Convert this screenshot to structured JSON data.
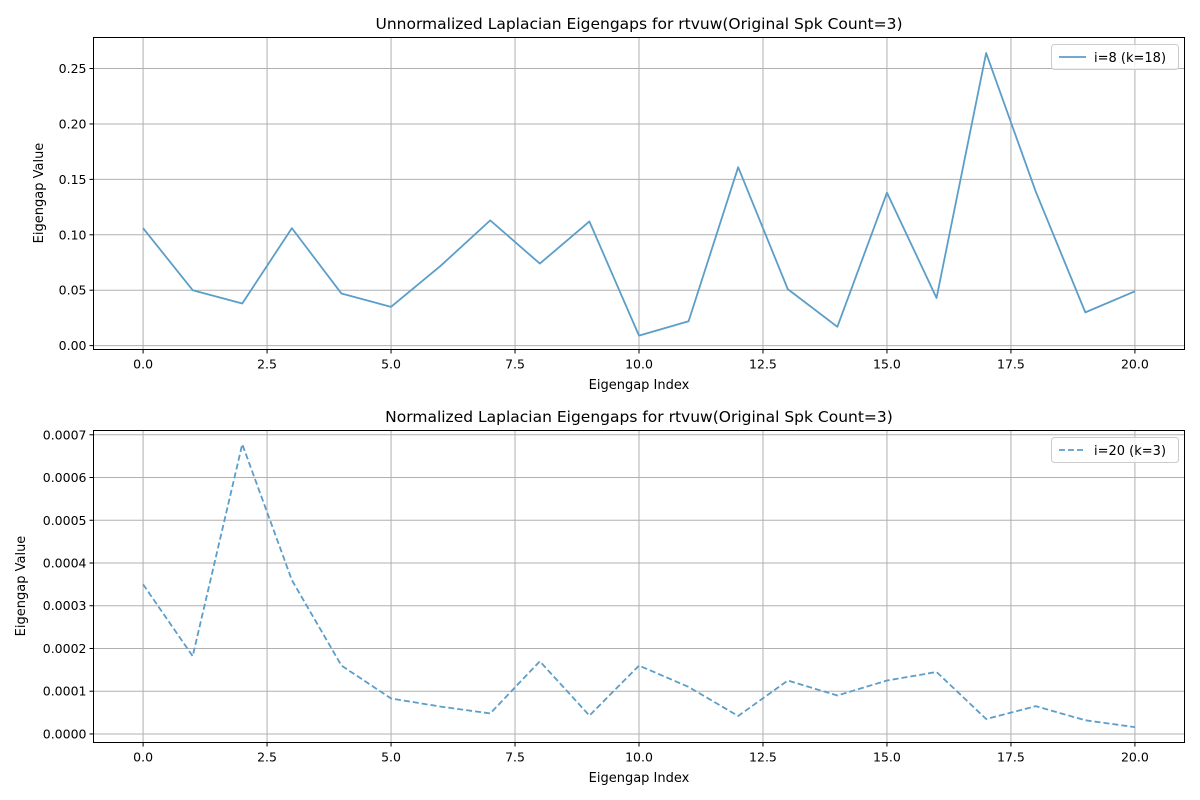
{
  "chart_data": [
    {
      "type": "line",
      "title": "Unnormalized Laplacian Eigengaps for rtvuw(Original Spk Count=3)",
      "xlabel": "Eigengap Index",
      "ylabel": "Eigengap Value",
      "xlim": [
        -1,
        21
      ],
      "ylim": [
        -0.0035,
        0.278
      ],
      "xticks": [
        0.0,
        2.5,
        5.0,
        7.5,
        10.0,
        12.5,
        15.0,
        17.5,
        20.0
      ],
      "xtick_labels": [
        "0.0",
        "2.5",
        "5.0",
        "7.5",
        "10.0",
        "12.5",
        "15.0",
        "17.5",
        "20.0"
      ],
      "yticks": [
        0.0,
        0.05,
        0.1,
        0.15,
        0.2,
        0.25
      ],
      "ytick_labels": [
        "0.00",
        "0.05",
        "0.10",
        "0.15",
        "0.20",
        "0.25"
      ],
      "grid": true,
      "legend_position": "top-right",
      "series": [
        {
          "name": "i=8 (k=18)",
          "style": "solid",
          "color": "#5b9ec9",
          "x": [
            0,
            1,
            2,
            3,
            4,
            5,
            6,
            7,
            8,
            9,
            10,
            11,
            12,
            13,
            14,
            15,
            16,
            17,
            18,
            19,
            20
          ],
          "values": [
            0.106,
            0.05,
            0.038,
            0.106,
            0.047,
            0.035,
            0.072,
            0.113,
            0.074,
            0.112,
            0.009,
            0.022,
            0.161,
            0.051,
            0.017,
            0.138,
            0.043,
            0.264,
            0.139,
            0.03,
            0.049
          ]
        }
      ]
    },
    {
      "type": "line",
      "title": "Normalized Laplacian Eigengaps for rtvuw(Original Spk Count=3)",
      "xlabel": "Eigengap Index",
      "ylabel": "Eigengap Value",
      "xlim": [
        -1,
        21
      ],
      "ylim": [
        -2e-05,
        0.00071
      ],
      "xticks": [
        0.0,
        2.5,
        5.0,
        7.5,
        10.0,
        12.5,
        15.0,
        17.5,
        20.0
      ],
      "xtick_labels": [
        "0.0",
        "2.5",
        "5.0",
        "7.5",
        "10.0",
        "12.5",
        "15.0",
        "17.5",
        "20.0"
      ],
      "yticks": [
        0.0,
        0.0001,
        0.0002,
        0.0003,
        0.0004,
        0.0005,
        0.0006,
        0.0007
      ],
      "ytick_labels": [
        "0.0000",
        "0.0001",
        "0.0002",
        "0.0003",
        "0.0004",
        "0.0005",
        "0.0006",
        "0.0007"
      ],
      "grid": true,
      "legend_position": "top-right",
      "series": [
        {
          "name": "i=20 (k=3)",
          "style": "dashed",
          "color": "#5b9ec9",
          "x": [
            0,
            1,
            2,
            3,
            4,
            5,
            6,
            7,
            8,
            9,
            10,
            11,
            12,
            13,
            14,
            15,
            16,
            17,
            18,
            19,
            20
          ],
          "values": [
            0.00035,
            0.000182,
            0.000678,
            0.00036,
            0.00016,
            8.3e-05,
            6.4e-05,
            4.8e-05,
            0.00017,
            4.3e-05,
            0.00016,
            0.00011,
            4.2e-05,
            0.000125,
            9e-05,
            0.000125,
            0.000145,
            3.5e-05,
            6.5e-05,
            3.2e-05,
            1.6e-05
          ]
        }
      ]
    }
  ]
}
